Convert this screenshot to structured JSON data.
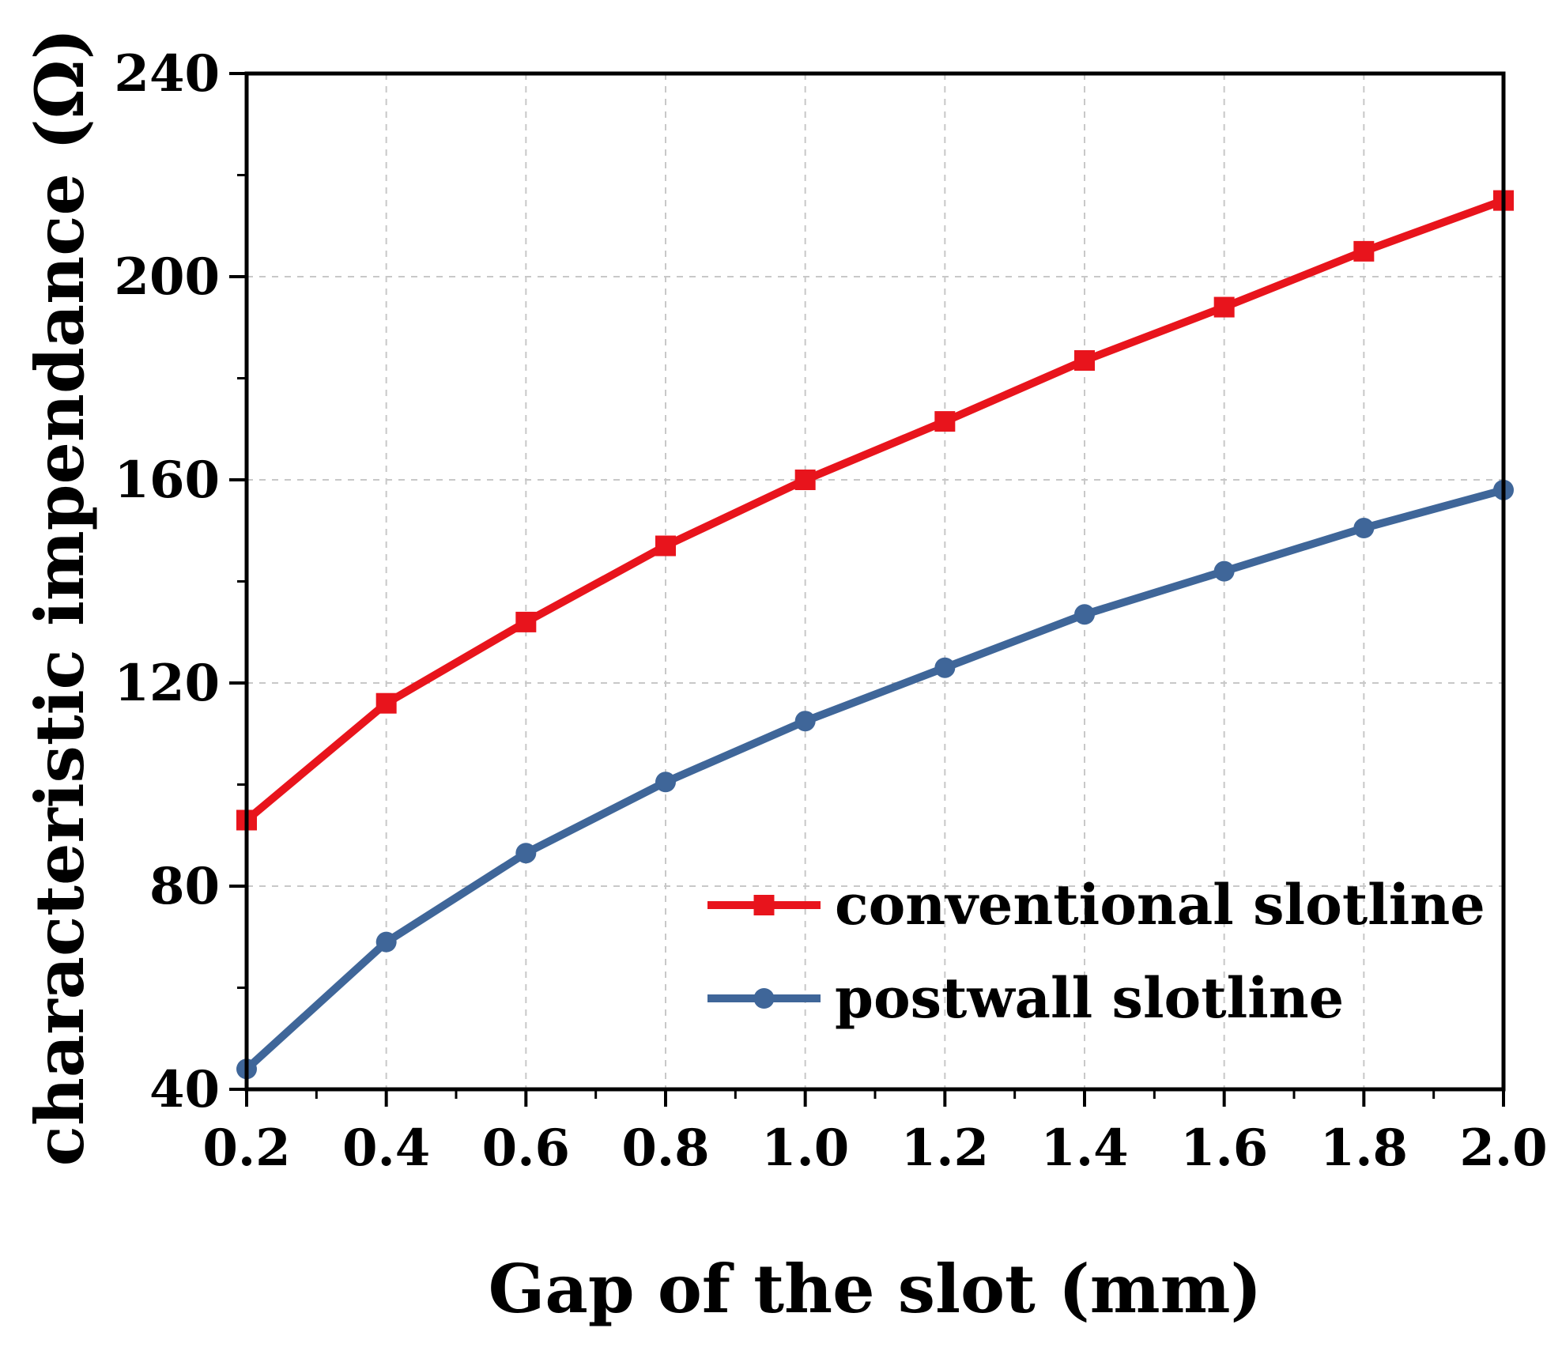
{
  "chart_data": {
    "type": "line",
    "title": "",
    "xlabel": "Gap of the slot (mm)",
    "ylabel": "characteristic impendance (Ω)",
    "x": [
      0.2,
      0.4,
      0.6,
      0.8,
      1.0,
      1.2,
      1.4,
      1.6,
      1.8,
      2.0
    ],
    "xlim": [
      0.2,
      2.0
    ],
    "ylim": [
      40,
      240
    ],
    "x_ticks": [
      "0.2",
      "0.4",
      "0.6",
      "0.8",
      "1.0",
      "1.2",
      "1.4",
      "1.6",
      "1.8",
      "2.0"
    ],
    "x_tick_values": [
      0.2,
      0.4,
      0.6,
      0.8,
      1.0,
      1.2,
      1.4,
      1.6,
      1.8,
      2.0
    ],
    "y_ticks": [
      "40",
      "80",
      "120",
      "160",
      "200",
      "240"
    ],
    "y_tick_values": [
      40,
      80,
      120,
      160,
      200,
      240
    ],
    "grid": true,
    "legend_position": "lower-right",
    "series": [
      {
        "name": "conventional slotline",
        "color": "#e8141c",
        "marker": "square",
        "values": [
          93,
          116,
          132,
          147,
          160,
          171.5,
          183.5,
          194,
          205,
          215
        ]
      },
      {
        "name": "postwall slotline",
        "color": "#3f6699",
        "marker": "circle",
        "values": [
          44,
          69,
          86.5,
          100.5,
          112.5,
          123,
          133.5,
          142,
          150.5,
          158
        ]
      }
    ]
  }
}
